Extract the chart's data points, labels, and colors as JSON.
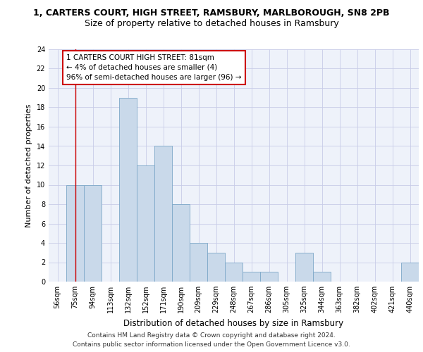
{
  "title_line1": "1, CARTERS COURT, HIGH STREET, RAMSBURY, MARLBOROUGH, SN8 2PB",
  "title_line2": "Size of property relative to detached houses in Ramsbury",
  "xlabel": "Distribution of detached houses by size in Ramsbury",
  "ylabel": "Number of detached properties",
  "categories": [
    "56sqm",
    "75sqm",
    "94sqm",
    "113sqm",
    "132sqm",
    "152sqm",
    "171sqm",
    "190sqm",
    "209sqm",
    "229sqm",
    "248sqm",
    "267sqm",
    "286sqm",
    "305sqm",
    "325sqm",
    "344sqm",
    "363sqm",
    "382sqm",
    "402sqm",
    "421sqm",
    "440sqm"
  ],
  "values": [
    0,
    10,
    10,
    0,
    19,
    12,
    14,
    8,
    4,
    3,
    2,
    1,
    1,
    0,
    3,
    1,
    0,
    0,
    0,
    0,
    2
  ],
  "bar_color": "#c9d9ea",
  "bar_edge_color": "#7da8c8",
  "annotation_line1": "1 CARTERS COURT HIGH STREET: 81sqm",
  "annotation_line2": "← 4% of detached houses are smaller (4)",
  "annotation_line3": "96% of semi-detached houses are larger (96) →",
  "annotation_box_color": "#ffffff",
  "annotation_box_edge_color": "#cc0000",
  "vline_x": 1,
  "vline_color": "#cc0000",
  "ylim": [
    0,
    24
  ],
  "yticks": [
    0,
    2,
    4,
    6,
    8,
    10,
    12,
    14,
    16,
    18,
    20,
    22,
    24
  ],
  "grid_color": "#c8cce8",
  "background_color": "#eef2fa",
  "footer_line1": "Contains HM Land Registry data © Crown copyright and database right 2024.",
  "footer_line2": "Contains public sector information licensed under the Open Government Licence v3.0.",
  "title_fontsize": 9,
  "subtitle_fontsize": 9,
  "ylabel_fontsize": 8,
  "xlabel_fontsize": 8.5,
  "tick_fontsize": 7,
  "annotation_fontsize": 7.5,
  "footer_fontsize": 6.5
}
